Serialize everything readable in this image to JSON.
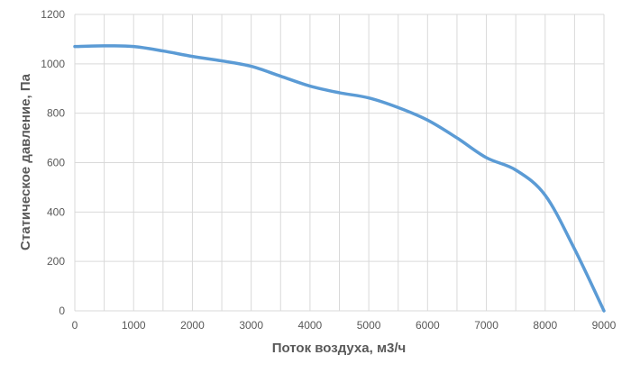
{
  "chart_data": {
    "type": "line",
    "title": "",
    "xlabel": "Поток воздуха, м3/ч",
    "ylabel": "Статическое давление, Па",
    "xlim": [
      0,
      9000
    ],
    "ylim": [
      0,
      1200
    ],
    "x_ticks": [
      0,
      1000,
      2000,
      3000,
      4000,
      5000,
      6000,
      7000,
      8000,
      9000
    ],
    "y_ticks": [
      0,
      200,
      400,
      600,
      800,
      1000,
      1200
    ],
    "x_minor_step": 500,
    "grid": true,
    "legend": "none",
    "series": [
      {
        "color": "#5b9bd5",
        "x": [
          0,
          500,
          1000,
          1500,
          2000,
          2500,
          3000,
          3500,
          4000,
          4500,
          5000,
          5500,
          6000,
          6500,
          7000,
          7500,
          8000,
          8500,
          9000
        ],
        "y": [
          1070,
          1073,
          1070,
          1052,
          1030,
          1012,
          990,
          950,
          910,
          883,
          862,
          823,
          772,
          700,
          620,
          570,
          468,
          250,
          0
        ]
      }
    ]
  }
}
